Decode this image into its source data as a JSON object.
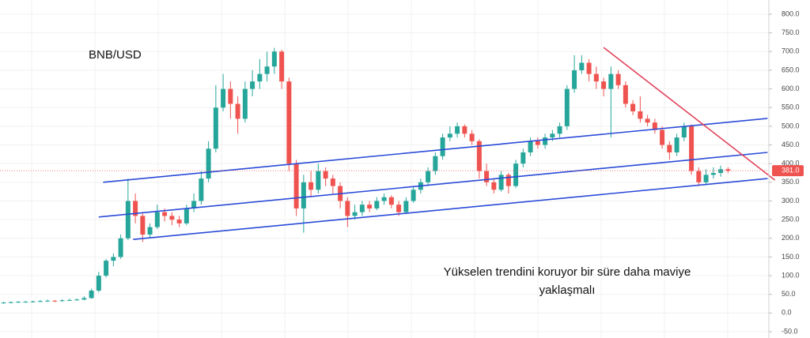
{
  "chart_data": {
    "type": "candlestick",
    "title": "BNB/USD",
    "annotation": [
      "Yükselen trendini koruyor bir süre daha maviye",
      "yaklaşmalı"
    ],
    "up_color": "#26a69a",
    "down_color": "#ef5350",
    "grid": true,
    "ylim": [
      -50,
      800
    ],
    "yticks": [
      {
        "value": -50,
        "label": "-50.0"
      },
      {
        "value": 0,
        "label": "0.0"
      },
      {
        "value": 50,
        "label": "50.0"
      },
      {
        "value": 100,
        "label": "100.0"
      },
      {
        "value": 150,
        "label": "150.0"
      },
      {
        "value": 200,
        "label": "200.0"
      },
      {
        "value": 250,
        "label": "250.0"
      },
      {
        "value": 300,
        "label": "300.0"
      },
      {
        "value": 350,
        "label": "350.0"
      },
      {
        "value": 400,
        "label": "400.0"
      },
      {
        "value": 450,
        "label": "450.0"
      },
      {
        "value": 500,
        "label": "500.0"
      },
      {
        "value": 550,
        "label": "550.0"
      },
      {
        "value": 600,
        "label": "600.0"
      },
      {
        "value": 650,
        "label": "650.0"
      },
      {
        "value": 700,
        "label": "700.0"
      },
      {
        "value": 750,
        "label": "750.0"
      },
      {
        "value": 800,
        "label": "800.0"
      }
    ],
    "last_price": {
      "value": 381,
      "label": "381.0"
    },
    "candles": [
      [
        27,
        30,
        25,
        28
      ],
      [
        28,
        31,
        26,
        29
      ],
      [
        29,
        32,
        27,
        30
      ],
      [
        30,
        33,
        28,
        30
      ],
      [
        30,
        33,
        28,
        31
      ],
      [
        31,
        35,
        29,
        32
      ],
      [
        32,
        36,
        30,
        33
      ],
      [
        33,
        35,
        29,
        32
      ],
      [
        32,
        37,
        30,
        34
      ],
      [
        34,
        38,
        32,
        35
      ],
      [
        35,
        39,
        33,
        36
      ],
      [
        36,
        45,
        34,
        40
      ],
      [
        40,
        65,
        38,
        60
      ],
      [
        60,
        110,
        55,
        100
      ],
      [
        100,
        145,
        95,
        140
      ],
      [
        140,
        160,
        125,
        150
      ],
      [
        150,
        210,
        145,
        200
      ],
      [
        200,
        360,
        195,
        300
      ],
      [
        300,
        320,
        240,
        260
      ],
      [
        260,
        270,
        190,
        210
      ],
      [
        210,
        240,
        200,
        230
      ],
      [
        230,
        290,
        225,
        270
      ],
      [
        270,
        280,
        245,
        260
      ],
      [
        260,
        270,
        235,
        250
      ],
      [
        250,
        260,
        230,
        240
      ],
      [
        240,
        290,
        235,
        280
      ],
      [
        280,
        320,
        270,
        300
      ],
      [
        300,
        380,
        290,
        360
      ],
      [
        360,
        460,
        350,
        440
      ],
      [
        440,
        610,
        430,
        550
      ],
      [
        550,
        640,
        540,
        600
      ],
      [
        600,
        620,
        520,
        560
      ],
      [
        560,
        580,
        480,
        520
      ],
      [
        520,
        620,
        510,
        600
      ],
      [
        600,
        650,
        580,
        620
      ],
      [
        620,
        680,
        600,
        640
      ],
      [
        640,
        700,
        620,
        660
      ],
      [
        660,
        710,
        640,
        700
      ],
      [
        700,
        705,
        600,
        620
      ],
      [
        620,
        630,
        380,
        400
      ],
      [
        400,
        410,
        260,
        280
      ],
      [
        280,
        370,
        215,
        350
      ],
      [
        350,
        380,
        310,
        330
      ],
      [
        330,
        400,
        320,
        380
      ],
      [
        380,
        390,
        340,
        360
      ],
      [
        360,
        370,
        320,
        340
      ],
      [
        340,
        350,
        280,
        300
      ],
      [
        300,
        310,
        230,
        260
      ],
      [
        260,
        290,
        250,
        270
      ],
      [
        270,
        300,
        260,
        290
      ],
      [
        290,
        300,
        270,
        280
      ],
      [
        280,
        310,
        275,
        300
      ],
      [
        300,
        320,
        290,
        310
      ],
      [
        310,
        315,
        280,
        290
      ],
      [
        290,
        300,
        260,
        270
      ],
      [
        270,
        310,
        265,
        300
      ],
      [
        300,
        340,
        295,
        330
      ],
      [
        330,
        360,
        320,
        350
      ],
      [
        350,
        390,
        340,
        380
      ],
      [
        380,
        430,
        370,
        420
      ],
      [
        420,
        480,
        410,
        470
      ],
      [
        470,
        500,
        460,
        480
      ],
      [
        480,
        510,
        470,
        500
      ],
      [
        500,
        505,
        470,
        480
      ],
      [
        480,
        490,
        450,
        460
      ],
      [
        460,
        465,
        360,
        380
      ],
      [
        380,
        400,
        340,
        350
      ],
      [
        350,
        360,
        320,
        330
      ],
      [
        330,
        380,
        325,
        370
      ],
      [
        370,
        375,
        320,
        340
      ],
      [
        340,
        410,
        335,
        400
      ],
      [
        400,
        440,
        390,
        430
      ],
      [
        430,
        470,
        420,
        460
      ],
      [
        460,
        470,
        440,
        450
      ],
      [
        450,
        480,
        440,
        470
      ],
      [
        470,
        490,
        460,
        480
      ],
      [
        480,
        510,
        470,
        500
      ],
      [
        500,
        610,
        490,
        600
      ],
      [
        600,
        690,
        590,
        650
      ],
      [
        650,
        690,
        640,
        670
      ],
      [
        670,
        680,
        620,
        640
      ],
      [
        640,
        660,
        600,
        620
      ],
      [
        620,
        630,
        580,
        600
      ],
      [
        600,
        660,
        470,
        640
      ],
      [
        640,
        650,
        600,
        610
      ],
      [
        610,
        620,
        550,
        560
      ],
      [
        560,
        570,
        530,
        540
      ],
      [
        540,
        580,
        510,
        520
      ],
      [
        520,
        530,
        500,
        510
      ],
      [
        510,
        520,
        480,
        490
      ],
      [
        490,
        500,
        440,
        450
      ],
      [
        450,
        460,
        410,
        430
      ],
      [
        430,
        480,
        420,
        470
      ],
      [
        470,
        510,
        460,
        500
      ],
      [
        500,
        505,
        370,
        380
      ],
      [
        380,
        390,
        340,
        350
      ],
      [
        350,
        385,
        345,
        370
      ],
      [
        370,
        390,
        360,
        375
      ],
      [
        375,
        395,
        365,
        385
      ],
      [
        385,
        390,
        375,
        381
      ]
    ],
    "trendlines": [
      {
        "color": "#2a4bd7",
        "points": [
          [
            13.6,
            350
          ],
          [
            104.4,
            521
          ]
        ]
      },
      {
        "color": "#2a4bd7",
        "points": [
          [
            13.0,
            257
          ],
          [
            104.4,
            430
          ]
        ]
      },
      {
        "color": "#2a4bd7",
        "points": [
          [
            17.7,
            197
          ],
          [
            104.4,
            360
          ]
        ]
      },
      {
        "color": "#e0435a",
        "points": [
          [
            82.0,
            711
          ],
          [
            105.4,
            356
          ]
        ]
      }
    ]
  }
}
